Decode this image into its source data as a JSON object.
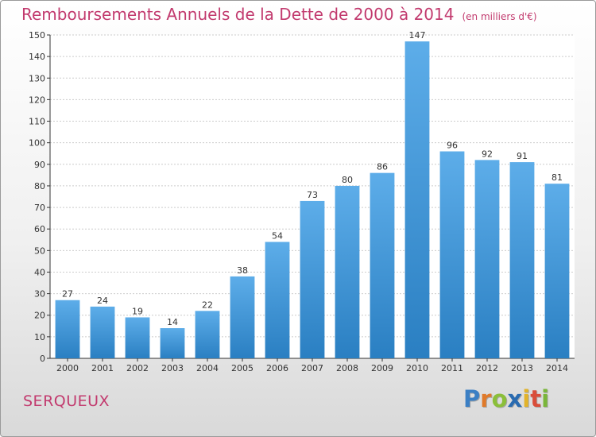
{
  "title": "Remboursements Annuels de la Dette de 2000 à 2014",
  "unit": "(en milliers d'€)",
  "place": "SERQUEUX",
  "logo": {
    "letters": [
      {
        "char": "P",
        "color": "#3b7fc4"
      },
      {
        "char": "r",
        "color": "#e07a2a"
      },
      {
        "char": "o",
        "color": "#8bbf3a"
      },
      {
        "char": "x",
        "color": "#2a6bb0"
      },
      {
        "char": "i",
        "color": "#e2b32a"
      },
      {
        "char": "t",
        "color": "#d94d3a"
      },
      {
        "char": "i",
        "color": "#7ab63a"
      }
    ]
  },
  "colors": {
    "bar_top": "#5dade9",
    "bar_bottom": "#2a7fc2",
    "grid": "#cccccc",
    "axis": "#333333"
  },
  "chart_data": {
    "type": "bar",
    "title": "Remboursements Annuels de la Dette de 2000 à 2014",
    "xlabel": "",
    "ylabel": "",
    "categories": [
      "2000",
      "2001",
      "2002",
      "2003",
      "2004",
      "2005",
      "2006",
      "2007",
      "2008",
      "2009",
      "2010",
      "2011",
      "2012",
      "2013",
      "2014"
    ],
    "values": [
      27,
      24,
      19,
      14,
      22,
      38,
      54,
      73,
      80,
      86,
      147,
      96,
      92,
      91,
      81
    ],
    "ylim": [
      0,
      150
    ],
    "yticks": [
      0,
      10,
      20,
      30,
      40,
      50,
      60,
      70,
      80,
      90,
      100,
      110,
      120,
      130,
      140,
      150
    ],
    "grid": true,
    "data_labels": true
  }
}
